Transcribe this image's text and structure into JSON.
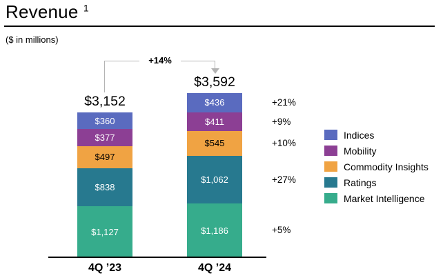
{
  "header": {
    "title": "Revenue",
    "footnote_marker": "1",
    "subtitle": "($ in millions)"
  },
  "chart_data": {
    "type": "bar",
    "subtype": "stacked-column",
    "title": "Revenue",
    "unit": "$ in millions",
    "categories": [
      "4Q ’23",
      "4Q ’24"
    ],
    "series": [
      {
        "name": "Indices",
        "color": "#5a6bbf",
        "label_color": "#ffffff",
        "values": [
          360,
          436
        ],
        "labels": [
          "$360",
          "$436"
        ],
        "pct_change": "+21%"
      },
      {
        "name": "Mobility",
        "color": "#8c3f94",
        "label_color": "#ffffff",
        "values": [
          377,
          411
        ],
        "labels": [
          "$377",
          "$411"
        ],
        "pct_change": "+9%"
      },
      {
        "name": "Commodity Insights",
        "color": "#f0a343",
        "label_color": "#000000",
        "values": [
          497,
          545
        ],
        "labels": [
          "$497",
          "$545"
        ],
        "pct_change": "+10%"
      },
      {
        "name": "Ratings",
        "color": "#27798f",
        "label_color": "#ffffff",
        "values": [
          838,
          1062
        ],
        "labels": [
          "$838",
          "$1,062"
        ],
        "pct_change": "+27%"
      },
      {
        "name": "Market Intelligence",
        "color": "#36ac8c",
        "label_color": "#ffffff",
        "values": [
          1127,
          1186
        ],
        "labels": [
          "$1,127",
          "$1,186"
        ],
        "pct_change": "+5%"
      }
    ],
    "totals": [
      "$3,152",
      "$3,592"
    ],
    "total_change": "+14%",
    "legend_position": "right",
    "legend_order_matches_stack_top_to_bottom": true,
    "connector_color": "#b3b3b3",
    "axis_color": "#000000"
  }
}
